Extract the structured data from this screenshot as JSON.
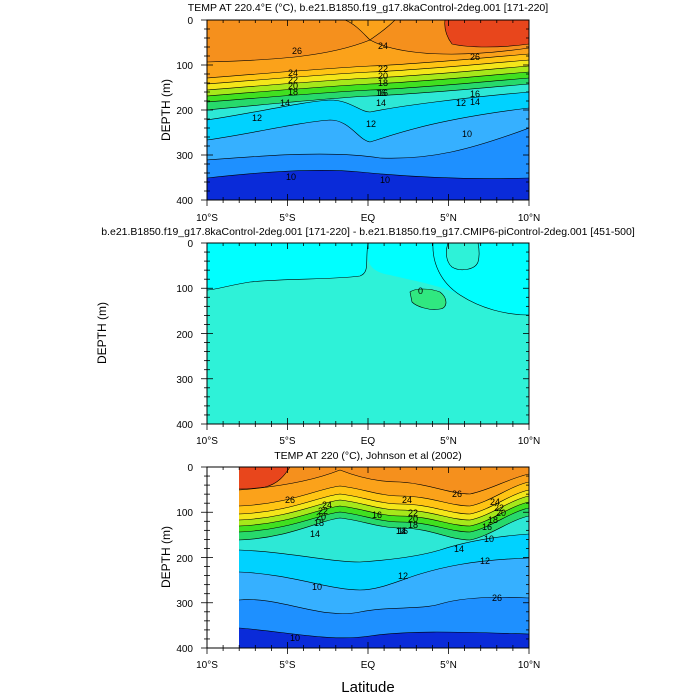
{
  "chart_data": [
    {
      "type": "heatmap",
      "title": "TEMP AT 220.4°E (°C), b.e21.B1850.f19_g17.8kaControl-2deg.001 [171-220]",
      "ylabel": "DEPTH (m)",
      "xlabel": "",
      "x_ticks": [
        "10°S",
        "5°S",
        "EQ",
        "5°N",
        "10°N"
      ],
      "y_ticks": [
        "0",
        "100",
        "200",
        "300",
        "400"
      ],
      "xlim": [
        -10,
        10
      ],
      "ylim": [
        400,
        0
      ],
      "contour_labels": [
        "26",
        "24",
        "22",
        "20",
        "18",
        "16",
        "14",
        "12",
        "10",
        "26",
        "24",
        "22",
        "20",
        "18",
        "16",
        "14",
        "12",
        "10",
        "16",
        "14",
        "12",
        "10"
      ],
      "palette": [
        "#0a2bd9",
        "#0f5fe6",
        "#1e90ff",
        "#36b0ff",
        "#00d2ff",
        "#2de8d6",
        "#27d96b",
        "#40e020",
        "#a6e81a",
        "#f4e61a",
        "#ffc414",
        "#fba21a",
        "#f5901d",
        "#ec6a12",
        "#e8461c"
      ]
    },
    {
      "type": "heatmap",
      "title": "b.e21.B1850.f19_g17.8kaControl-2deg.001 [171-220] - b.e21.B1850.f19_g17.CMIP6-piControl-2deg.001 [451-500]",
      "ylabel": "DEPTH (m)",
      "xlabel": "",
      "x_ticks": [
        "10°S",
        "5°S",
        "EQ",
        "5°N",
        "10°N"
      ],
      "y_ticks": [
        "0",
        "100",
        "200",
        "300",
        "400"
      ],
      "xlim": [
        -10,
        10
      ],
      "ylim": [
        400,
        0
      ],
      "contour_labels": [
        "0"
      ],
      "palette": [
        "#00ffff",
        "#2ef2d8",
        "#30e880"
      ]
    },
    {
      "type": "heatmap",
      "title": "TEMP AT 220 (°C), Johnson et al (2002)",
      "ylabel": "DEPTH (m)",
      "xlabel": "Latitude",
      "x_ticks": [
        "10°S",
        "5°S",
        "EQ",
        "5°N",
        "10°N"
      ],
      "y_ticks": [
        "0",
        "100",
        "200",
        "300",
        "400"
      ],
      "xlim": [
        -10,
        10
      ],
      "ylim": [
        400,
        0
      ],
      "data_lat_range": [
        -8,
        10
      ],
      "contour_labels": [
        "26",
        "24",
        "22",
        "20",
        "18",
        "16",
        "14",
        "12",
        "10",
        "26",
        "24",
        "22",
        "20",
        "18",
        "16",
        "14",
        "12",
        "10",
        "26",
        "24",
        "22",
        "20",
        "18",
        "16",
        "14",
        "12",
        "10"
      ],
      "palette": [
        "#0a2bd9",
        "#0f5fe6",
        "#1e90ff",
        "#36b0ff",
        "#00d2ff",
        "#2de8d6",
        "#27d96b",
        "#40e020",
        "#a6e81a",
        "#f4e61a",
        "#ffc414",
        "#fba21a",
        "#f5901d",
        "#ec6a12",
        "#e8461c"
      ]
    }
  ],
  "figure": {
    "x_axis_title": "Latitude"
  }
}
